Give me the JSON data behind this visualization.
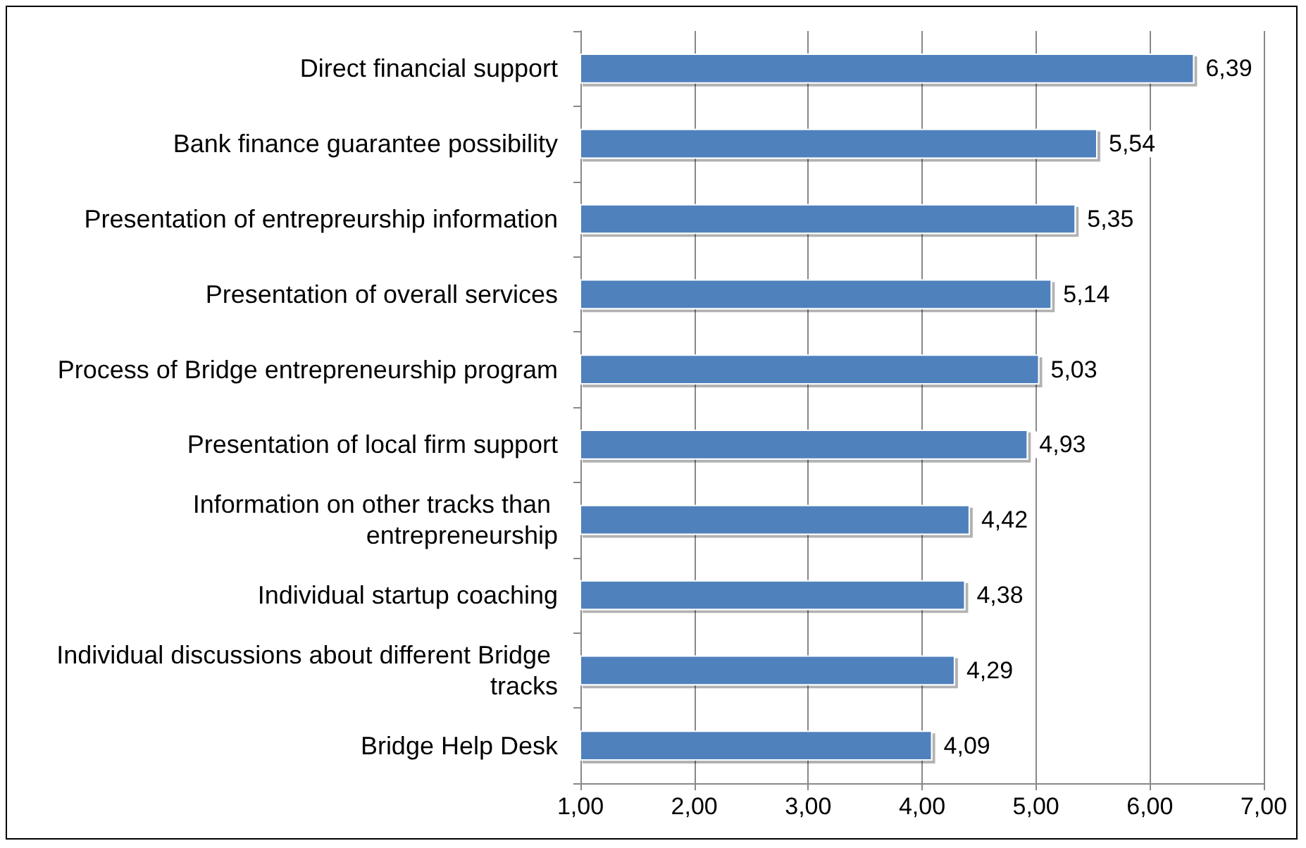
{
  "chart_data": {
    "type": "bar",
    "orientation": "horizontal",
    "categories": [
      "Direct financial support",
      "Bank finance guarantee possibility",
      "Presentation of entrepreurship information",
      "Presentation of overall services",
      "Process of Bridge entrepreneurship program",
      "Presentation of local firm support",
      "Information on other tracks than entrepreneurship",
      "Individual startup coaching",
      "Individual discussions about different Bridge tracks",
      "Bridge Help Desk"
    ],
    "values": [
      6.39,
      5.54,
      5.35,
      5.14,
      5.03,
      4.93,
      4.42,
      4.38,
      4.29,
      4.09
    ],
    "value_labels": [
      "6,39",
      "5,54",
      "5,35",
      "5,14",
      "5,03",
      "4,93",
      "4,42",
      "4,38",
      "4,29",
      "4,09"
    ],
    "color": "#4f81bd",
    "xlim": [
      1,
      7
    ],
    "xticks": [
      {
        "value": 1,
        "label": "1,00"
      },
      {
        "value": 2,
        "label": "2,00"
      },
      {
        "value": 3,
        "label": "3,00"
      },
      {
        "value": 4,
        "label": "4,00"
      },
      {
        "value": 5,
        "label": "5,00"
      },
      {
        "value": 6,
        "label": "6,00"
      },
      {
        "value": 7,
        "label": "7,00"
      }
    ],
    "grid": "x"
  }
}
